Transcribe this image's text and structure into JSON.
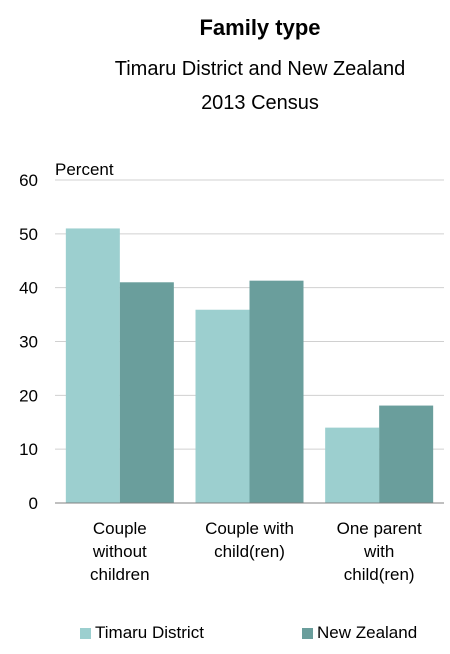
{
  "chart_data": {
    "type": "bar",
    "title": "Family type",
    "subtitle": [
      "Timaru District and New Zealand",
      "2013 Census"
    ],
    "ylabel": "Percent",
    "xlabel": "",
    "categories": [
      [
        "Couple",
        "without",
        "children"
      ],
      [
        "Couple with",
        "child(ren)"
      ],
      [
        "One parent",
        "with",
        "child(ren)"
      ]
    ],
    "series": [
      {
        "name": "Timaru District",
        "values": [
          51.0,
          35.9,
          14.0
        ],
        "color": "#9ccfcf"
      },
      {
        "name": "New Zealand",
        "values": [
          41.0,
          41.3,
          18.1
        ],
        "color": "#6a9e9c"
      }
    ],
    "ylim": [
      0,
      60
    ],
    "yticks": [
      0,
      10,
      20,
      30,
      40,
      50,
      60
    ],
    "grid": true,
    "legend_position": "bottom"
  }
}
